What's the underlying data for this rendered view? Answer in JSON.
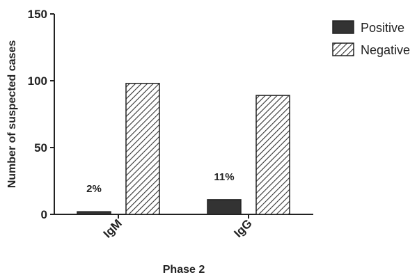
{
  "chart_data": {
    "type": "bar",
    "categories": [
      "IgM",
      "IgG"
    ],
    "series": [
      {
        "name": "Positive",
        "values": [
          2,
          11
        ],
        "pattern": "solid",
        "color": "#333333"
      },
      {
        "name": "Negative",
        "values": [
          98,
          89
        ],
        "pattern": "hatched",
        "color": "#333333"
      }
    ],
    "data_labels": [
      "2%",
      "11%"
    ],
    "xlabel": "Phase 2",
    "ylabel": "Number of suspected cases",
    "ylim": [
      0,
      150
    ],
    "yticks": [
      0,
      50,
      100,
      150
    ],
    "legend_position": "top-right",
    "grid": false
  }
}
